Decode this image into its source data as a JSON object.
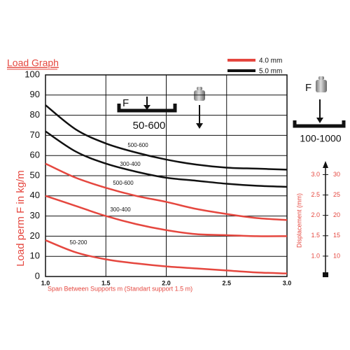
{
  "chart_data": {
    "type": "line",
    "title": "Load Graph",
    "x_label": "Span Between Supports m (Standart support 1.5 m)",
    "y_label": "Load perm F in kg/m",
    "x": [
      1,
      1.25,
      1.5,
      1.75,
      2,
      2.25,
      2.5,
      2.75,
      3
    ],
    "xlim": [
      1,
      3
    ],
    "xticks": [
      {
        "value": 1,
        "label": "1.0"
      },
      {
        "value": 1.5,
        "label": "1.5"
      },
      {
        "value": 2,
        "label": "2.0"
      },
      {
        "value": 2.5,
        "label": "2.5"
      },
      {
        "value": 3,
        "label": "3.0"
      }
    ],
    "ylim": [
      0,
      100
    ],
    "yticks": [
      0,
      10,
      20,
      30,
      40,
      50,
      60,
      70,
      80,
      90,
      100
    ],
    "grid": true,
    "legend": [
      {
        "name": "4.0 mm",
        "color": "#e5473f"
      },
      {
        "name": "5.0 mm",
        "color": "#111111"
      }
    ],
    "series": [
      {
        "name": "500-600",
        "color": "#111111",
        "values": [
          85,
          73,
          66,
          61.5,
          58,
          55.5,
          54,
          53.5,
          53
        ]
      },
      {
        "name": "300-400",
        "color": "#111111",
        "values": [
          72,
          62,
          56,
          52,
          49,
          47.5,
          46,
          45,
          44.5
        ]
      },
      {
        "name": "500-600",
        "color": "#e5473f",
        "values": [
          56,
          49,
          44,
          40,
          37,
          33.5,
          31,
          29,
          28
        ]
      },
      {
        "name": "300-400",
        "color": "#e5473f",
        "values": [
          40,
          35,
          30,
          26,
          23,
          21,
          20.5,
          20,
          20
        ]
      },
      {
        "name": "50-200",
        "color": "#e5473f",
        "values": [
          18,
          12,
          8.5,
          6.5,
          5,
          4,
          3,
          2,
          1.5
        ]
      }
    ],
    "diagrams": {
      "left": {
        "force": "F",
        "range": "50-600"
      },
      "right": {
        "force": "F",
        "range": "100-1000"
      }
    },
    "displacement_axis": {
      "label": "Displacement (mm)",
      "lim": [
        0.5,
        3.3
      ],
      "ticks": [
        {
          "value": 1,
          "label": "1.0"
        },
        {
          "value": 1.5,
          "label": "1.5"
        },
        {
          "value": 2,
          "label": "2.0"
        },
        {
          "value": 2.5,
          "label": "2.5"
        },
        {
          "value": 3,
          "label": "3.0"
        }
      ],
      "lim2": [
        5,
        33
      ],
      "ticks2": [
        10,
        15,
        20,
        25,
        30
      ]
    }
  }
}
